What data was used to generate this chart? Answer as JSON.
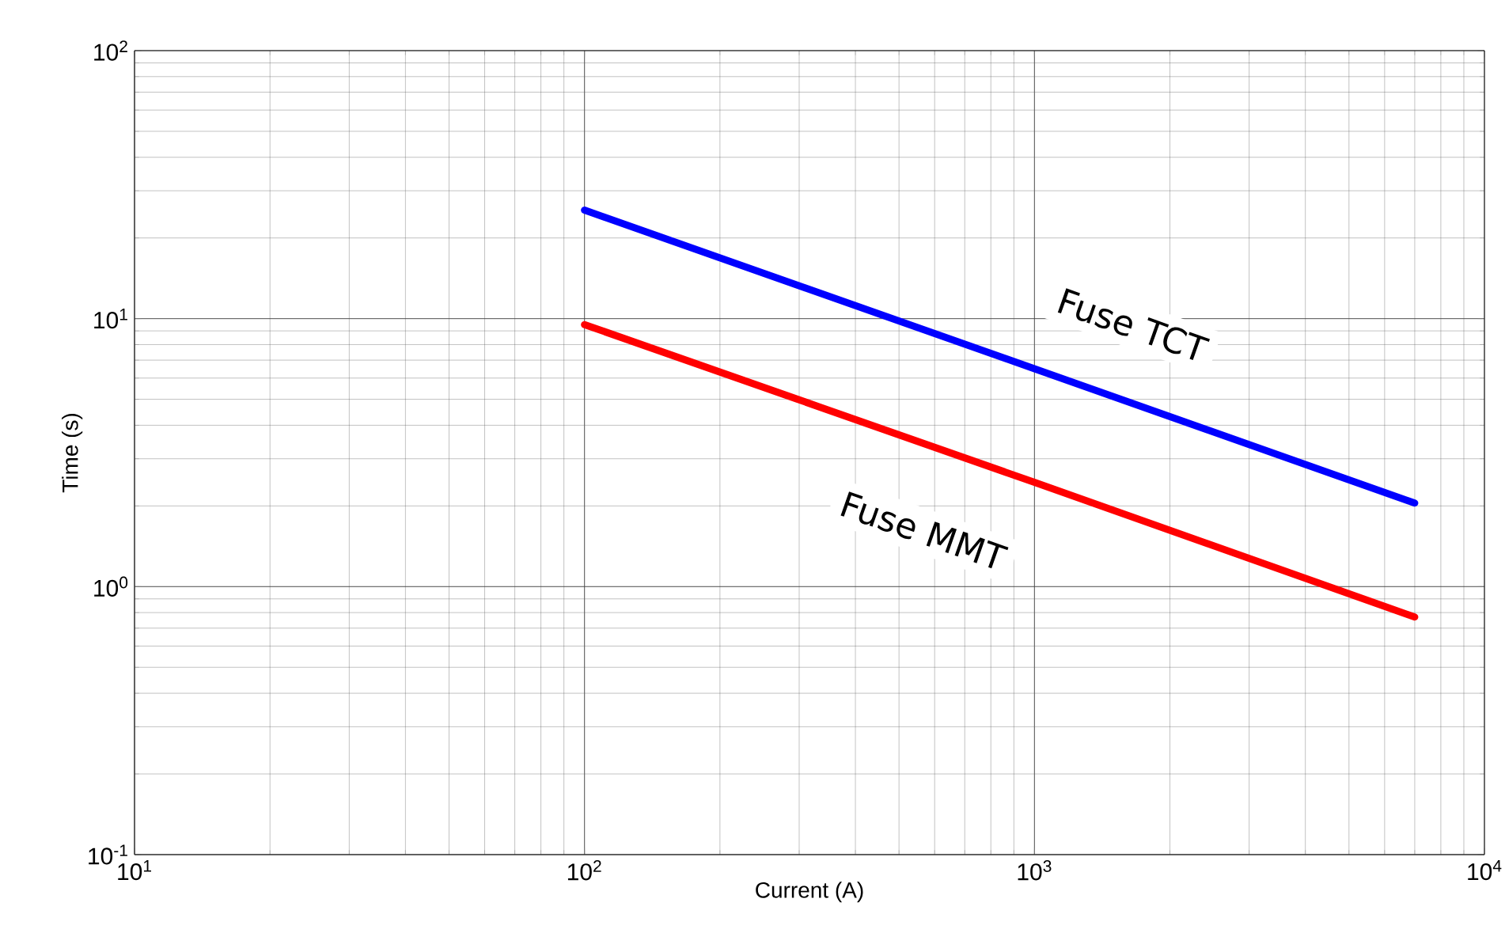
{
  "chart_data": {
    "type": "line",
    "xlabel": "Current (A)",
    "ylabel": "Time (s)",
    "log": "xy",
    "grid": true,
    "legend": false,
    "marker": "none",
    "line_style": "solid",
    "xlim": [
      10,
      10000
    ],
    "ylim": [
      0.1,
      100
    ],
    "xticks": [
      {
        "value": 10,
        "label": "10$^{1}$"
      },
      {
        "value": 100,
        "label": "10$^{2}$"
      },
      {
        "value": 1000,
        "label": "10$^{3}$"
      },
      {
        "value": 10000,
        "label": "10$^{4}$"
      }
    ],
    "yticks": [
      {
        "value": 0.1,
        "label": "10$^{-1}$"
      },
      {
        "value": 1,
        "label": "10$^{0}$"
      },
      {
        "value": 10,
        "label": "10$^{1}$"
      },
      {
        "value": 100,
        "label": "10$^{2}$"
      }
    ],
    "series": [
      {
        "name": "Fuse TCT",
        "color": "#0000ff",
        "x": [
          100,
          1000,
          7000
        ],
        "values": [
          25.4,
          6.5,
          2.05
        ]
      },
      {
        "name": "Fuse MMT",
        "color": "#ff0000",
        "x": [
          100,
          1000,
          7000
        ],
        "values": [
          9.5,
          2.45,
          0.77
        ]
      }
    ]
  }
}
